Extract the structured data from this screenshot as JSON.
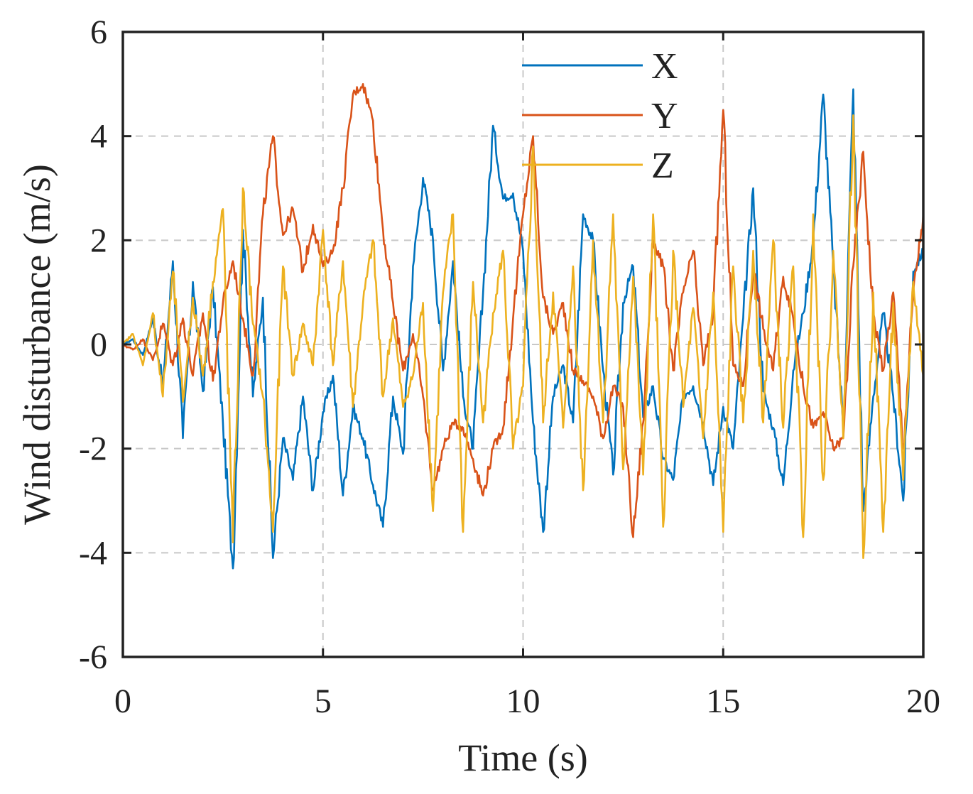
{
  "chart_data": {
    "type": "line",
    "title": "",
    "xlabel": "Time (s)",
    "ylabel": "Wind disturbance (m/s)",
    "xlim": [
      0,
      20
    ],
    "ylim": [
      -6,
      6
    ],
    "xticks": [
      0,
      5,
      10,
      15,
      20
    ],
    "xtick_labels": [
      "0",
      "5",
      "10",
      "15",
      "20"
    ],
    "yticks": [
      -6,
      -4,
      -2,
      0,
      2,
      4,
      6
    ],
    "ytick_labels": [
      "-6",
      "-4",
      "-2",
      "0",
      "2",
      "4",
      "6"
    ],
    "grid": true,
    "legend_position": "top-right",
    "series": [
      {
        "name": "X",
        "color": "#0072BD",
        "x": [
          0,
          0.25,
          0.5,
          0.75,
          1,
          1.25,
          1.5,
          1.75,
          2,
          2.25,
          2.5,
          2.75,
          3,
          3.25,
          3.5,
          3.75,
          4,
          4.25,
          4.5,
          4.75,
          5,
          5.25,
          5.5,
          5.75,
          6,
          6.25,
          6.5,
          6.75,
          7,
          7.25,
          7.5,
          7.75,
          8,
          8.25,
          8.5,
          8.75,
          9,
          9.25,
          9.5,
          9.75,
          10,
          10.25,
          10.5,
          10.75,
          11,
          11.25,
          11.5,
          11.75,
          12,
          12.25,
          12.5,
          12.75,
          13,
          13.25,
          13.5,
          13.75,
          14,
          14.25,
          14.5,
          14.75,
          15,
          15.25,
          15.5,
          15.75,
          16,
          16.25,
          16.5,
          16.75,
          17,
          17.25,
          17.5,
          17.75,
          18,
          18.25,
          18.5,
          18.75,
          19,
          19.25,
          19.5,
          19.75,
          20
        ],
        "values": [
          0,
          0.1,
          -0.2,
          0.5,
          -0.8,
          1.6,
          -1.8,
          1.2,
          -0.9,
          1.1,
          -1.5,
          -4.3,
          2.2,
          -1.0,
          0.9,
          -4.1,
          -1.8,
          -2.6,
          -1.0,
          -2.8,
          -1.3,
          -0.6,
          -2.9,
          -1.2,
          -1.8,
          -2.7,
          -3.5,
          -1.0,
          -2.1,
          1.5,
          3.2,
          2.0,
          -0.5,
          1.6,
          -1.0,
          -2.0,
          1.0,
          4.2,
          2.8,
          2.9,
          1.8,
          -1.5,
          -3.6,
          -1.0,
          -0.4,
          -1.5,
          2.5,
          2.0,
          -0.5,
          -2.5,
          0.8,
          1.5,
          -1.4,
          -0.8,
          -2.2,
          -2.6,
          -1.0,
          -0.8,
          -1.5,
          -2.7,
          -1.2,
          -2.0,
          0.5,
          3.0,
          -0.9,
          -1.6,
          -2.7,
          -0.5,
          0.6,
          2.0,
          4.8,
          1.5,
          -1.6,
          4.9,
          -3.2,
          -1.0,
          0.6,
          -1.0,
          -3.0,
          1.4,
          1.8
        ]
      },
      {
        "name": "Y",
        "color": "#D95319",
        "x": [
          0,
          0.25,
          0.5,
          0.75,
          1,
          1.25,
          1.5,
          1.75,
          2,
          2.25,
          2.5,
          2.75,
          3,
          3.25,
          3.5,
          3.75,
          4,
          4.25,
          4.5,
          4.75,
          5,
          5.25,
          5.5,
          5.75,
          6,
          6.25,
          6.5,
          6.75,
          7,
          7.25,
          7.5,
          7.75,
          8,
          8.25,
          8.5,
          8.75,
          9,
          9.25,
          9.5,
          9.75,
          10,
          10.25,
          10.5,
          10.75,
          11,
          11.25,
          11.5,
          11.75,
          12,
          12.25,
          12.5,
          12.75,
          13,
          13.25,
          13.5,
          13.75,
          14,
          14.25,
          14.5,
          14.75,
          15,
          15.25,
          15.5,
          15.75,
          16,
          16.25,
          16.5,
          16.75,
          17,
          17.25,
          17.5,
          17.75,
          18,
          18.25,
          18.5,
          18.75,
          19,
          19.25,
          19.5,
          19.75,
          20
        ],
        "values": [
          0,
          -0.1,
          0.1,
          -0.3,
          0.4,
          -0.4,
          0.5,
          -0.6,
          0.6,
          -0.7,
          0.8,
          1.6,
          0.5,
          -0.6,
          2.5,
          4.0,
          2.1,
          2.6,
          1.4,
          2.3,
          1.5,
          1.8,
          3.0,
          4.8,
          5.0,
          4.3,
          2.2,
          0.8,
          -0.5,
          0.2,
          -1.0,
          -2.8,
          -2.0,
          -1.5,
          -1.6,
          -2.2,
          -2.9,
          -2.0,
          -1.6,
          0.5,
          2.5,
          4.0,
          0.9,
          0.2,
          0.8,
          -0.5,
          -0.7,
          -1.0,
          -1.8,
          -0.8,
          -1.2,
          -3.7,
          -1.5,
          2.0,
          1.5,
          -0.5,
          1.0,
          1.8,
          -0.4,
          0.6,
          4.5,
          -0.4,
          -0.8,
          1.5,
          0.3,
          -0.5,
          1.3,
          0.5,
          -0.8,
          -1.6,
          -1.3,
          -2.0,
          -1.8,
          1.5,
          3.7,
          0.6,
          -0.5,
          1.0,
          -2.0,
          1.0,
          2.5
        ]
      },
      {
        "name": "Z",
        "color": "#EDB120",
        "x": [
          0,
          0.25,
          0.5,
          0.75,
          1,
          1.25,
          1.5,
          1.75,
          2,
          2.25,
          2.5,
          2.75,
          3,
          3.25,
          3.5,
          3.75,
          4,
          4.25,
          4.5,
          4.75,
          5,
          5.25,
          5.5,
          5.75,
          6,
          6.25,
          6.5,
          6.75,
          7,
          7.25,
          7.5,
          7.75,
          8,
          8.25,
          8.5,
          8.75,
          9,
          9.25,
          9.5,
          9.75,
          10,
          10.25,
          10.5,
          10.75,
          11,
          11.25,
          11.5,
          11.75,
          12,
          12.25,
          12.5,
          12.75,
          13,
          13.25,
          13.5,
          13.75,
          14,
          14.25,
          14.5,
          14.75,
          15,
          15.25,
          15.5,
          15.75,
          16,
          16.25,
          16.5,
          16.75,
          17,
          17.25,
          17.5,
          17.75,
          18,
          18.25,
          18.5,
          18.75,
          19,
          19.25,
          19.5,
          19.75,
          20
        ],
        "values": [
          0,
          0.2,
          -0.4,
          0.6,
          -1.0,
          1.4,
          -1.1,
          0.9,
          -0.6,
          1.2,
          2.6,
          -3.8,
          3.0,
          0.4,
          -1.0,
          -3.6,
          1.5,
          -0.6,
          0.4,
          -0.4,
          2.2,
          -0.4,
          1.6,
          -1.2,
          0.8,
          2.0,
          -1.0,
          0.5,
          -1.2,
          -0.6,
          0.8,
          -3.2,
          1.0,
          2.5,
          -3.6,
          1.2,
          -1.5,
          0.6,
          1.8,
          -2.0,
          -0.8,
          3.8,
          -1.5,
          1.0,
          -1.6,
          1.5,
          -2.8,
          2.0,
          -1.5,
          2.5,
          -2.4,
          1.3,
          -2.5,
          2.5,
          -3.5,
          1.8,
          -1.2,
          0.7,
          -1.8,
          1.0,
          -3.6,
          1.5,
          -1.5,
          1.8,
          -1.5,
          2.0,
          -1.6,
          1.5,
          -3.7,
          2.5,
          -2.6,
          1.8,
          -1.8,
          4.4,
          -4.1,
          1.0,
          -3.6,
          0.8,
          -2.6,
          1.2,
          -0.6
        ]
      }
    ]
  }
}
